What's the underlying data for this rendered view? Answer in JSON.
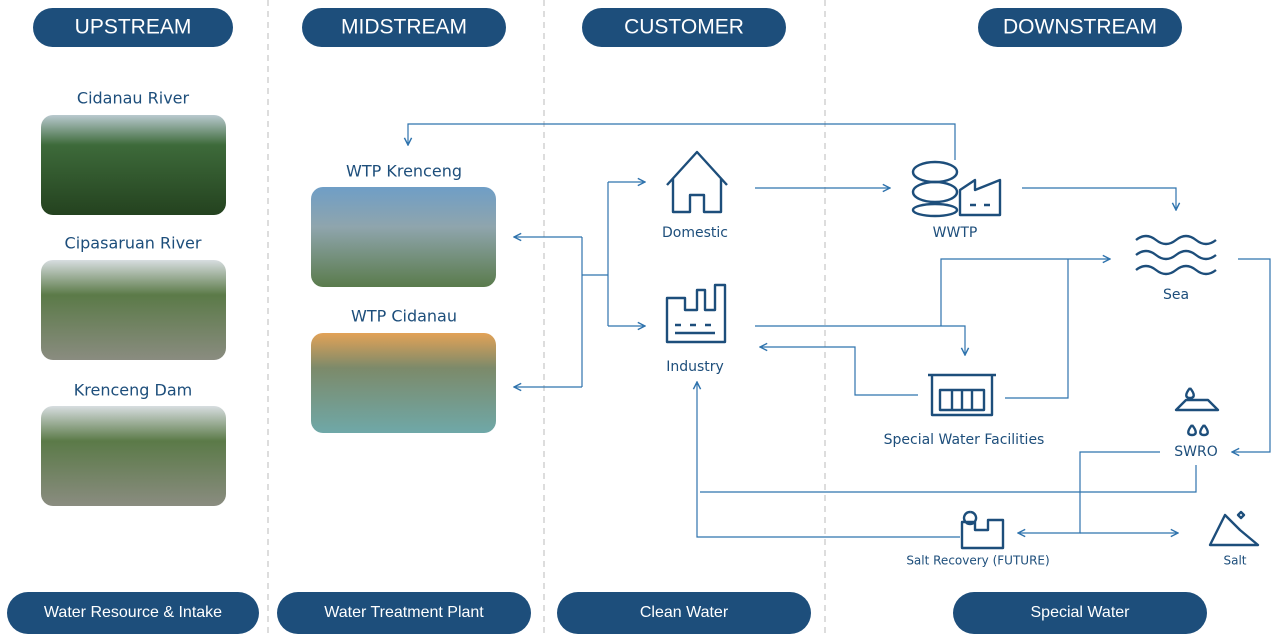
{
  "headers": [
    "UPSTREAM",
    "MIDSTREAM",
    "CUSTOMER",
    "DOWNSTREAM"
  ],
  "footers": [
    "Water Resource & Intake",
    "Water Treatment Plant",
    "Clean Water",
    "Special Water"
  ],
  "sources": [
    "Cidanau River",
    "Cipasaruan River",
    "Krenceng Dam"
  ],
  "plants": [
    "WTP Krenceng",
    "WTP Cidanau"
  ],
  "nodes": [
    "Domestic",
    "Industry",
    "WWTP",
    "Sea",
    "Special Water Facilities",
    "SWRO",
    "Salt Recovery (FUTURE)",
    "Salt"
  ]
}
